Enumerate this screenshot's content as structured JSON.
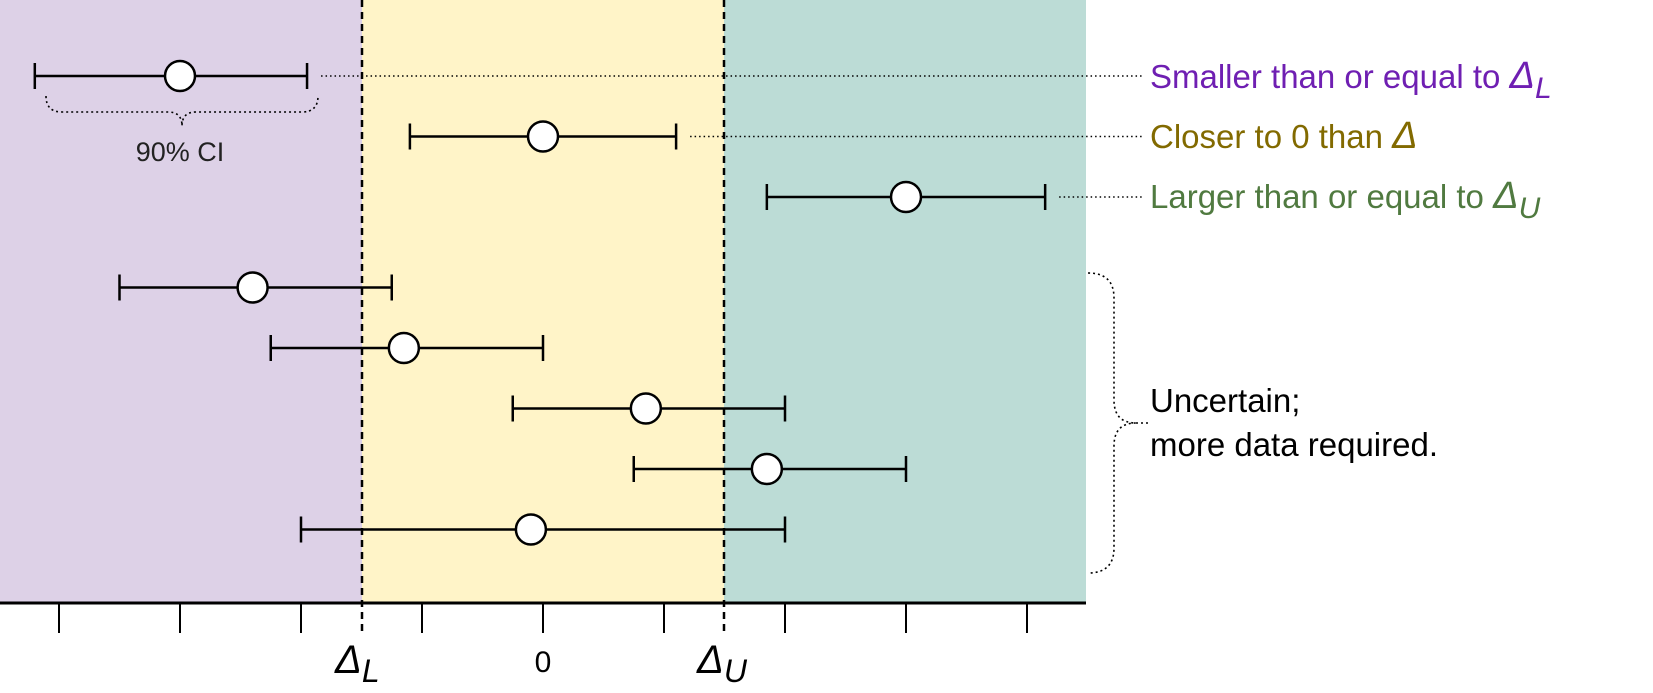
{
  "colors": {
    "lower_region": "#ddd1e7",
    "middle_region": "#fff4c8",
    "upper_region": "#bcdcd6",
    "lower_text": "#6f1fb2",
    "middle_text": "#826a00",
    "upper_text": "#507a40",
    "ink": "#000000"
  },
  "axis": {
    "zero_label": "0",
    "delta_lower": "Δ",
    "delta_lower_sub": "L",
    "delta_upper": "Δ",
    "delta_upper_sub": "U"
  },
  "ci_label": "90% CI",
  "legend": {
    "lower": {
      "text": "Smaller than or equal to ",
      "symbol": "Δ",
      "sub": "L"
    },
    "middle": {
      "text": "Closer to 0 than ",
      "symbol": "Δ",
      "sub": ""
    },
    "upper": {
      "text": "Larger than or equal to ",
      "symbol": "Δ",
      "sub": "U"
    }
  },
  "uncertain": {
    "line1": "Uncertain;",
    "line2": "more data required."
  },
  "estimates": [
    {
      "low": -4.2,
      "est": -3.0,
      "high": -1.95,
      "class": "lower"
    },
    {
      "low": -1.1,
      "est": 0.0,
      "high": 1.1,
      "class": "middle"
    },
    {
      "low": 1.85,
      "est": 3.0,
      "high": 4.15,
      "class": "upper"
    },
    {
      "low": -3.5,
      "est": -2.4,
      "high": -1.25,
      "class": "uncertain"
    },
    {
      "low": -2.25,
      "est": -1.15,
      "high": 0.0,
      "class": "uncertain"
    },
    {
      "low": -0.25,
      "est": 0.85,
      "high": 2.0,
      "class": "uncertain"
    },
    {
      "low": 0.75,
      "est": 1.85,
      "high": 3.0,
      "class": "uncertain"
    },
    {
      "low": -2.0,
      "est": -0.1,
      "high": 2.0,
      "class": "uncertain"
    }
  ]
}
